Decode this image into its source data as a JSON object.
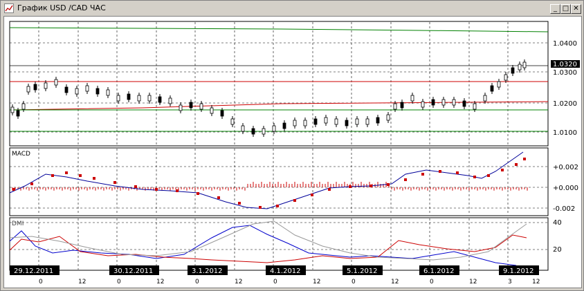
{
  "window": {
    "title": "График USD /CAD  ЧАС",
    "minimize_glyph": "_",
    "maximize_glyph": "□",
    "close_glyph": "✕"
  },
  "price_panel": {
    "axis_labels": [
      "1.0400",
      "1.0300",
      "1.0200",
      "1.0100"
    ],
    "current_price": "1.0320"
  },
  "macd_panel": {
    "label": "MACD",
    "axis_labels": [
      "+0.002",
      "+0.000",
      "-0.002"
    ]
  },
  "dmi_panel": {
    "label": "DMI",
    "axis_labels": [
      "40",
      "20"
    ]
  },
  "time_axis": {
    "dates": [
      "29.12.2011",
      "30.12.2011",
      "3.1.2012",
      "4.1.2012",
      "5.1.2012",
      "6.1.2012",
      "9.1.2012"
    ],
    "hour_labels": [
      "0",
      "12",
      "0",
      "12",
      "0",
      "12",
      "0",
      "12",
      "0",
      "12",
      "0",
      "12",
      "3",
      "12"
    ]
  },
  "colors": {
    "candle_up": "#ffffff",
    "candle_down": "#000000",
    "green_line": "#008000",
    "red_line": "#cc0000",
    "macd_line": "#000099",
    "signal_dots": "#cc0000",
    "dmi_plus": "#0000cc",
    "dmi_minus": "#cc0000",
    "adx": "#999999"
  }
}
